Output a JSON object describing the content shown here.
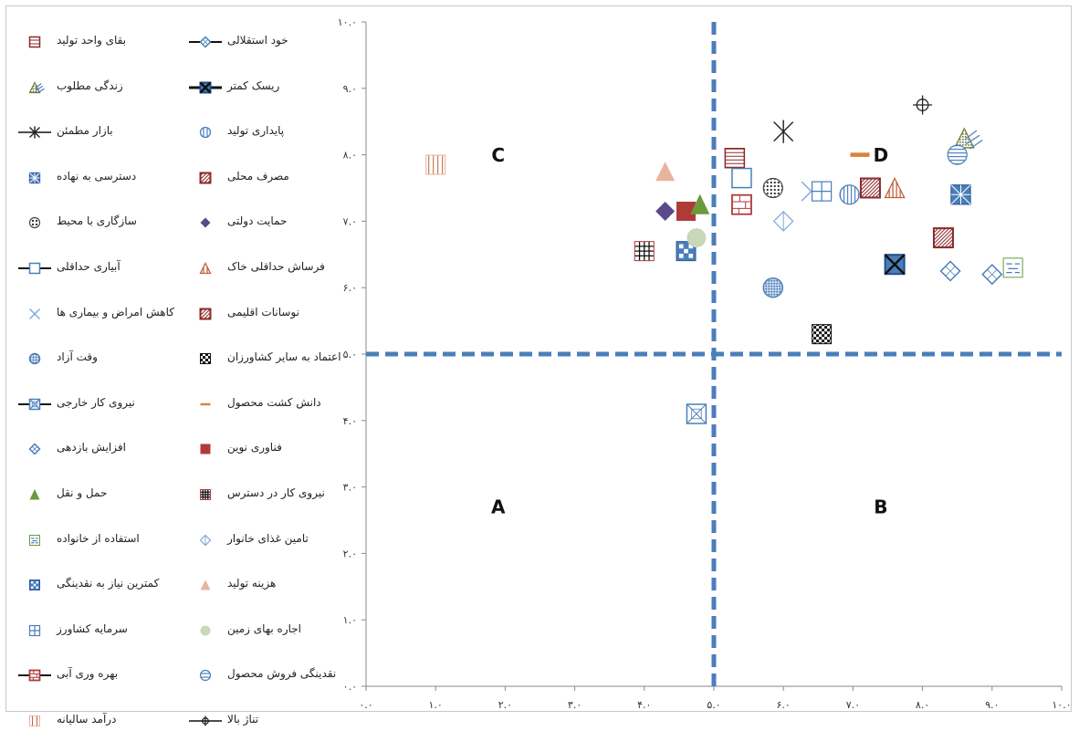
{
  "chart_data": {
    "type": "scatter",
    "title": "",
    "xlabel": "",
    "ylabel": "",
    "xlim": [
      0,
      10
    ],
    "ylim": [
      0,
      10
    ],
    "x_ticks": [
      "۰.۰",
      "۱.۰",
      "۲.۰",
      "۳.۰",
      "۴.۰",
      "۵.۰",
      "۶.۰",
      "۷.۰",
      "۸.۰",
      "۹.۰",
      "۱۰.۰"
    ],
    "y_ticks": [
      "۰.۰",
      "۱.۰",
      "۲.۰",
      "۳.۰",
      "۴.۰",
      "۵.۰",
      "۶.۰",
      "۷.۰",
      "۸.۰",
      "۹.۰",
      "۱۰.۰"
    ],
    "divider_x": 5.0,
    "divider_y": 5.0,
    "divider_color": "#4a7ebb",
    "quadrant_labels": [
      {
        "text": "C",
        "x": 1.9,
        "y": 7.9
      },
      {
        "text": "D",
        "x": 7.4,
        "y": 7.9
      },
      {
        "text": "A",
        "x": 1.9,
        "y": 2.6
      },
      {
        "text": "B",
        "x": 7.4,
        "y": 2.6
      }
    ],
    "grid": false,
    "legend_position": "left",
    "series": [
      {
        "name": "بقای واحد تولید",
        "marker": "hlines",
        "color": "#8b2a2a",
        "x": 5.3,
        "y": 7.95
      },
      {
        "name": "خود استقلالی",
        "marker": "line-diamond",
        "color": "#4a7ebb",
        "x": 9.0,
        "y": 6.2
      },
      {
        "name": "زندگی مطلوب",
        "marker": "dot-triangle",
        "color": "#6a7d2a",
        "x": 8.6,
        "y": 8.25
      },
      {
        "name": "ریسک کمتر",
        "marker": "line-xsquare",
        "color": "#1f4e8a",
        "x": 7.6,
        "y": 6.35
      },
      {
        "name": "بازار مطمئن",
        "marker": "star",
        "color": "#222222",
        "x": 6.0,
        "y": 8.35
      },
      {
        "name": "پایداری تولید",
        "marker": "vcircle",
        "color": "#4a7ebb",
        "x": 6.95,
        "y": 7.4
      },
      {
        "name": "دسترسی به نهاده",
        "marker": "grid-square",
        "color": "#4a7ebb",
        "x": 8.55,
        "y": 7.4
      },
      {
        "name": "مصرف محلی",
        "marker": "diag-square",
        "color": "#8b2a2a",
        "x": 8.3,
        "y": 6.75
      },
      {
        "name": "سازگاری با محیط",
        "marker": "dot-circle",
        "color": "#222222",
        "x": 5.85,
        "y": 7.5
      },
      {
        "name": "حمایت دولتی",
        "marker": "diamond",
        "color": "#5b4a8a",
        "x": 4.3,
        "y": 7.15
      },
      {
        "name": "آبیاری حداقلی",
        "marker": "line-square",
        "color": "#4a7ebb",
        "x": 5.4,
        "y": 7.65
      },
      {
        "name": "فرساش حداقلی خاک",
        "marker": "stripe-triangle",
        "color": "#c0603a",
        "x": 7.6,
        "y": 7.5
      },
      {
        "name": "کاهش امراض و بیماری ها",
        "marker": "xmark",
        "color": "#7fa7d8",
        "x": 6.4,
        "y": 7.45
      },
      {
        "name": "نوسانات اقلیمی",
        "marker": "diag-square2",
        "color": "#8b2a2a",
        "x": 7.25,
        "y": 7.5
      },
      {
        "name": "وقت آزاد",
        "marker": "dot-circle-blue",
        "color": "#4a7ebb",
        "x": 5.85,
        "y": 6.0
      },
      {
        "name": "اعتماد به سایر کشاورزان",
        "marker": "checker",
        "color": "#111111",
        "x": 6.55,
        "y": 5.3
      },
      {
        "name": "نیروی کار خارجی",
        "marker": "line-xsquare2",
        "color": "#4a7ebb",
        "x": 4.75,
        "y": 4.1
      },
      {
        "name": "دانش کشت محصول",
        "marker": "dash",
        "color": "#d9823b",
        "x": 7.1,
        "y": 8.0
      },
      {
        "name": "افزایش بازدهی",
        "marker": "diamond-cross",
        "color": "#4a7ebb",
        "x": 8.4,
        "y": 6.25
      },
      {
        "name": "فناوری نوین",
        "marker": "square",
        "color": "#b03a3a",
        "x": 4.6,
        "y": 7.15
      },
      {
        "name": "حمل و نقل",
        "marker": "triangle",
        "color": "#6a9a3a",
        "x": 4.8,
        "y": 7.25
      },
      {
        "name": "نیروی کار در دسترس",
        "marker": "hash",
        "color": "#222222",
        "x": 4.0,
        "y": 6.55
      },
      {
        "name": "استفاده از خانواده",
        "marker": "dash-square",
        "color": "#6a9a3a",
        "x": 9.3,
        "y": 6.3
      },
      {
        "name": "تامین غذای خانوار",
        "marker": "diamond-v",
        "color": "#7fa7d8",
        "x": 6.0,
        "y": 7.0
      },
      {
        "name": "کمترین نیاز به نقدینگی",
        "marker": "dots-square",
        "color": "#4a7ebb",
        "x": 4.6,
        "y": 6.55
      },
      {
        "name": "هزینه تولید",
        "marker": "triangle-light",
        "color": "#e8b49a",
        "x": 4.3,
        "y": 7.75
      },
      {
        "name": "سرمایه کشاورز",
        "marker": "plus-square",
        "color": "#4a7ebb",
        "x": 6.55,
        "y": 7.45
      },
      {
        "name": "اجاره بهای زمین",
        "marker": "circle-light",
        "color": "#c8d8b8",
        "x": 4.75,
        "y": 6.75
      },
      {
        "name": "بهره وری آبی",
        "marker": "line-square-red",
        "color": "#8b2a2a",
        "x": 5.4,
        "y": 7.25
      },
      {
        "name": "نقدینگی فروش محصول",
        "marker": "circle-minus",
        "color": "#4a7ebb",
        "x": 8.5,
        "y": 8.0
      },
      {
        "name": "درآمد سالیانه",
        "marker": "vlines",
        "color": "#c0603a",
        "x": 1.0,
        "y": 7.85
      },
      {
        "name": "تناژ بالا",
        "marker": "plus-circle",
        "color": "#222222",
        "x": 8.0,
        "y": 8.75
      }
    ]
  },
  "legend": {
    "right_column": [
      "بقای واحد تولید",
      "زندگی مطلوب",
      "بازار مطمئن",
      "دسترسی به نهاده",
      "سازگاری با محیط",
      "آبیاری حداقلی",
      "کاهش امراض و بیماری ها",
      "وقت آزاد",
      "نیروی کار خارجی",
      "افزایش بازدهی",
      "حمل و نقل",
      "استفاده از خانواده",
      "کمترین نیاز به نقدینگی",
      "سرمایه کشاورز",
      "بهره وری آبی",
      "درآمد سالیانه"
    ],
    "left_column": [
      "خود استقلالی",
      "ریسک کمتر",
      "پایداری تولید",
      "مصرف محلی",
      "حمایت دولتی",
      "فرساش حداقلی خاک",
      "نوسانات اقلیمی",
      "اعتماد به سایر کشاورزان",
      "دانش کشت محصول",
      "فناوری نوین",
      "نیروی کار در دسترس",
      "تامین غذای خانوار",
      "هزینه تولید",
      "اجاره بهای زمین",
      "نقدینگی فروش محصول",
      "تناژ بالا"
    ]
  }
}
